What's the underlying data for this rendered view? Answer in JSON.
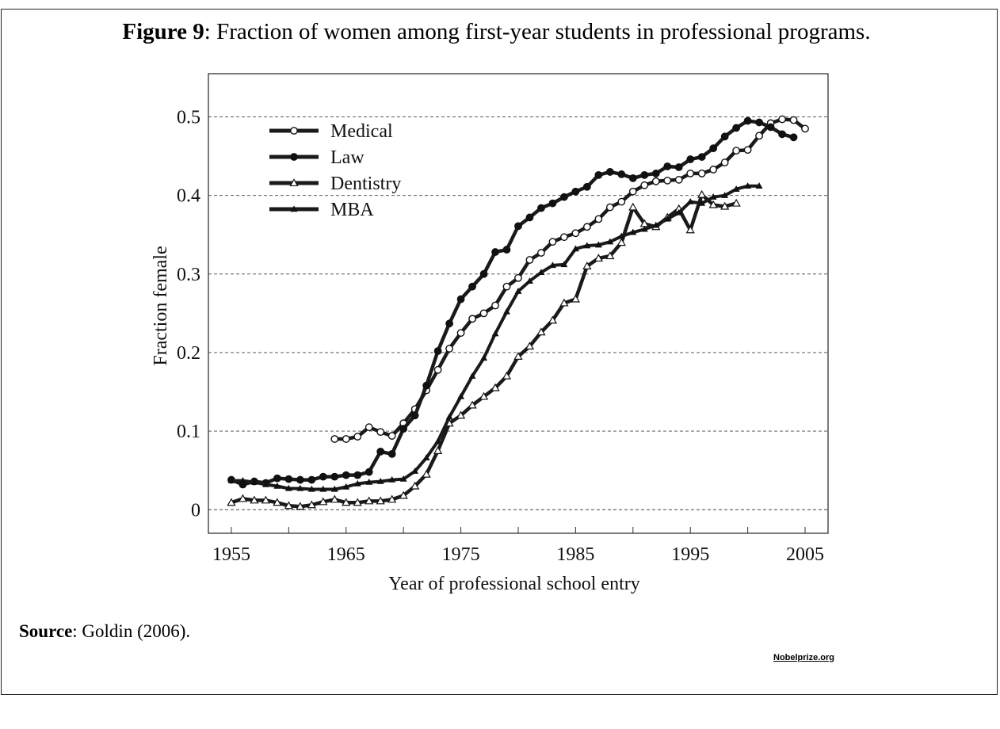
{
  "figure": {
    "title_bold": "Figure 9",
    "title_rest": ": Fraction of women among first-year students in professional programs.",
    "source_bold": "Source",
    "source_rest": ": Goldin (2006).",
    "credit": "Nobelprize.org"
  },
  "chart_data": {
    "type": "line",
    "title": "Fraction of women among first-year students in professional programs.",
    "xlabel": "Year of professional school entry",
    "ylabel": "Fraction female",
    "xlim": [
      1953,
      2007
    ],
    "ylim": [
      -0.03,
      0.555
    ],
    "xticks": [
      1955,
      1965,
      1975,
      1985,
      1995,
      2005
    ],
    "yticks": [
      0,
      0.1,
      0.2,
      0.3,
      0.4,
      0.5
    ],
    "ytick_labels": [
      "0",
      "0.1",
      "0.2",
      "0.3",
      "0.4",
      "0.5"
    ],
    "grid": "horizontal dashed",
    "legend_position": "top-left",
    "series": [
      {
        "name": "Medical",
        "marker": "open-circle",
        "x": [
          1964,
          1965,
          1966,
          1967,
          1968,
          1969,
          1970,
          1971,
          1972,
          1973,
          1974,
          1975,
          1976,
          1977,
          1978,
          1979,
          1980,
          1981,
          1982,
          1983,
          1984,
          1985,
          1986,
          1987,
          1988,
          1989,
          1990,
          1991,
          1992,
          1993,
          1994,
          1995,
          1996,
          1997,
          1998,
          1999,
          2000,
          2001,
          2002,
          2003,
          2004,
          2005
        ],
        "y": [
          0.09,
          0.09,
          0.093,
          0.105,
          0.099,
          0.094,
          0.11,
          0.128,
          0.152,
          0.178,
          0.205,
          0.225,
          0.243,
          0.25,
          0.26,
          0.284,
          0.295,
          0.318,
          0.327,
          0.341,
          0.347,
          0.352,
          0.36,
          0.37,
          0.385,
          0.392,
          0.405,
          0.413,
          0.418,
          0.419,
          0.42,
          0.428,
          0.428,
          0.433,
          0.442,
          0.457,
          0.458,
          0.476,
          0.492,
          0.497,
          0.496,
          0.485
        ]
      },
      {
        "name": "Law",
        "marker": "filled-circle",
        "x": [
          1955,
          1956,
          1957,
          1958,
          1959,
          1960,
          1961,
          1962,
          1963,
          1964,
          1965,
          1966,
          1967,
          1968,
          1969,
          1970,
          1971,
          1972,
          1973,
          1974,
          1975,
          1976,
          1977,
          1978,
          1979,
          1980,
          1981,
          1982,
          1983,
          1984,
          1985,
          1986,
          1987,
          1988,
          1989,
          1990,
          1991,
          1992,
          1993,
          1994,
          1995,
          1996,
          1997,
          1998,
          1999,
          2000,
          2001,
          2002,
          2003,
          2004
        ],
        "y": [
          0.038,
          0.032,
          0.036,
          0.034,
          0.04,
          0.039,
          0.038,
          0.038,
          0.042,
          0.042,
          0.044,
          0.044,
          0.048,
          0.074,
          0.071,
          0.103,
          0.12,
          0.158,
          0.202,
          0.237,
          0.268,
          0.284,
          0.3,
          0.328,
          0.331,
          0.361,
          0.372,
          0.384,
          0.39,
          0.398,
          0.405,
          0.411,
          0.426,
          0.43,
          0.427,
          0.422,
          0.426,
          0.428,
          0.437,
          0.436,
          0.446,
          0.449,
          0.46,
          0.475,
          0.486,
          0.495,
          0.493,
          0.487,
          0.478,
          0.474
        ]
      },
      {
        "name": "Dentistry",
        "marker": "open-triangle",
        "x": [
          1955,
          1956,
          1957,
          1958,
          1959,
          1960,
          1961,
          1962,
          1963,
          1964,
          1965,
          1966,
          1967,
          1968,
          1969,
          1970,
          1971,
          1972,
          1973,
          1974,
          1975,
          1976,
          1977,
          1978,
          1979,
          1980,
          1981,
          1982,
          1983,
          1984,
          1985,
          1986,
          1987,
          1988,
          1989,
          1990,
          1991,
          1992,
          1993,
          1994,
          1995,
          1996,
          1997,
          1998,
          1999
        ],
        "y": [
          0.009,
          0.014,
          0.012,
          0.012,
          0.009,
          0.005,
          0.004,
          0.006,
          0.01,
          0.013,
          0.009,
          0.009,
          0.011,
          0.011,
          0.013,
          0.018,
          0.03,
          0.045,
          0.075,
          0.11,
          0.12,
          0.133,
          0.144,
          0.155,
          0.17,
          0.195,
          0.208,
          0.226,
          0.241,
          0.263,
          0.268,
          0.31,
          0.32,
          0.323,
          0.34,
          0.385,
          0.364,
          0.36,
          0.372,
          0.383,
          0.356,
          0.401,
          0.388,
          0.386,
          0.39
        ]
      },
      {
        "name": "MBA",
        "marker": "filled-triangle",
        "x": [
          1955,
          1956,
          1957,
          1958,
          1959,
          1960,
          1961,
          1962,
          1963,
          1964,
          1965,
          1966,
          1967,
          1968,
          1969,
          1970,
          1971,
          1972,
          1973,
          1974,
          1975,
          1976,
          1977,
          1978,
          1979,
          1980,
          1981,
          1982,
          1983,
          1984,
          1985,
          1986,
          1987,
          1988,
          1989,
          1990,
          1991,
          1992,
          1993,
          1994,
          1995,
          1996,
          1997,
          1998,
          1999,
          2000,
          2001
        ],
        "y": [
          0.037,
          0.037,
          0.035,
          0.032,
          0.03,
          0.027,
          0.027,
          0.026,
          0.026,
          0.026,
          0.029,
          0.033,
          0.035,
          0.036,
          0.038,
          0.039,
          0.049,
          0.066,
          0.087,
          0.118,
          0.144,
          0.17,
          0.193,
          0.224,
          0.252,
          0.278,
          0.291,
          0.302,
          0.311,
          0.312,
          0.332,
          0.336,
          0.337,
          0.341,
          0.348,
          0.353,
          0.357,
          0.362,
          0.37,
          0.378,
          0.392,
          0.39,
          0.398,
          0.4,
          0.408,
          0.412,
          0.412
        ]
      }
    ]
  }
}
